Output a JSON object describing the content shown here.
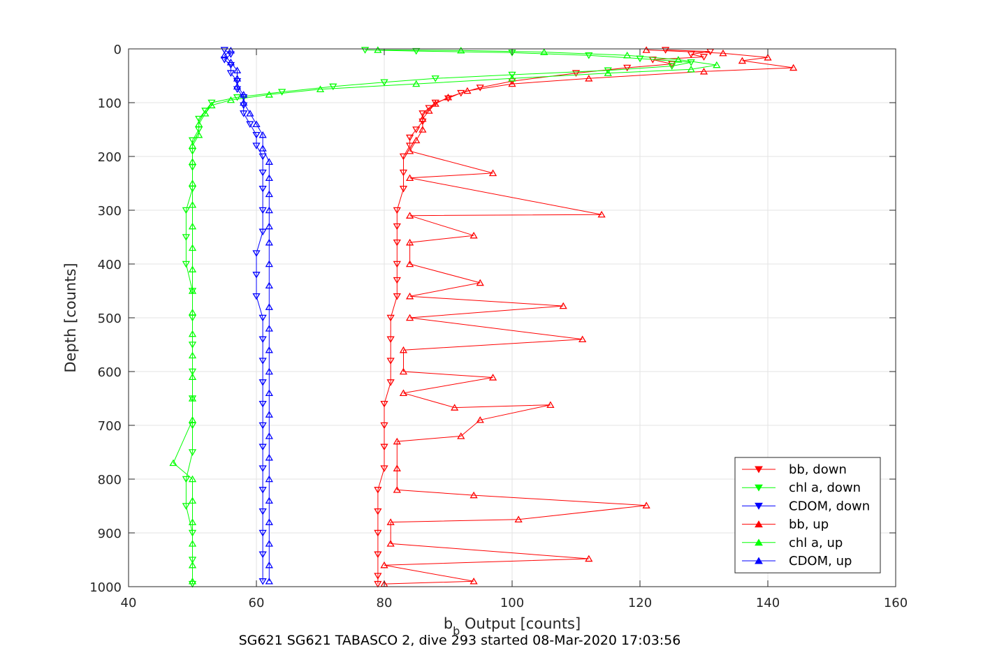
{
  "chart_data": {
    "type": "scatter",
    "title": "",
    "caption": "SG621 SG621 TABASCO 2, dive 293 started 08-Mar-2020 17:03:56",
    "xlabel": {
      "main": "b",
      "sub": "b",
      "rest": " Output [counts]"
    },
    "ylabel": "Depth [counts]",
    "xlim": [
      40,
      160
    ],
    "ylim": [
      0,
      1000
    ],
    "y_reversed": true,
    "grid": true,
    "legend_position": "bottom-right",
    "xticks": [
      40,
      60,
      80,
      100,
      120,
      140,
      160
    ],
    "yticks": [
      0,
      100,
      200,
      300,
      400,
      500,
      600,
      700,
      800,
      900,
      1000
    ],
    "series": [
      {
        "name": "bb, down",
        "color": "#ff0000",
        "marker": "triangle-down",
        "points": [
          [
            124,
            2
          ],
          [
            131,
            5
          ],
          [
            128,
            10
          ],
          [
            130,
            15
          ],
          [
            122,
            20
          ],
          [
            125,
            28
          ],
          [
            118,
            35
          ],
          [
            110,
            45
          ],
          [
            100,
            60
          ],
          [
            95,
            72
          ],
          [
            92,
            82
          ],
          [
            90,
            92
          ],
          [
            88,
            100
          ],
          [
            87,
            110
          ],
          [
            86,
            120
          ],
          [
            86,
            135
          ],
          [
            85,
            150
          ],
          [
            84,
            165
          ],
          [
            84,
            180
          ],
          [
            83,
            200
          ],
          [
            83,
            230
          ],
          [
            83,
            260
          ],
          [
            82,
            300
          ],
          [
            82,
            330
          ],
          [
            82,
            360
          ],
          [
            82,
            400
          ],
          [
            82,
            430
          ],
          [
            82,
            460
          ],
          [
            81,
            500
          ],
          [
            81,
            540
          ],
          [
            81,
            580
          ],
          [
            81,
            620
          ],
          [
            80,
            660
          ],
          [
            80,
            700
          ],
          [
            80,
            740
          ],
          [
            80,
            780
          ],
          [
            79,
            820
          ],
          [
            79,
            860
          ],
          [
            79,
            900
          ],
          [
            79,
            940
          ],
          [
            79,
            980
          ],
          [
            79,
            995
          ]
        ]
      },
      {
        "name": "chl a, down",
        "color": "#00ff00",
        "marker": "triangle-down",
        "points": [
          [
            77,
            2
          ],
          [
            85,
            4
          ],
          [
            100,
            7
          ],
          [
            112,
            12
          ],
          [
            120,
            18
          ],
          [
            128,
            25
          ],
          [
            125,
            32
          ],
          [
            115,
            40
          ],
          [
            100,
            48
          ],
          [
            88,
            55
          ],
          [
            80,
            62
          ],
          [
            72,
            70
          ],
          [
            64,
            80
          ],
          [
            57,
            90
          ],
          [
            53,
            100
          ],
          [
            52,
            115
          ],
          [
            51,
            130
          ],
          [
            51,
            150
          ],
          [
            50,
            170
          ],
          [
            50,
            190
          ],
          [
            50,
            220
          ],
          [
            50,
            260
          ],
          [
            49,
            300
          ],
          [
            49,
            350
          ],
          [
            49,
            400
          ],
          [
            50,
            450
          ],
          [
            50,
            500
          ],
          [
            50,
            550
          ],
          [
            50,
            600
          ],
          [
            50,
            650
          ],
          [
            50,
            700
          ],
          [
            50,
            750
          ],
          [
            49,
            800
          ],
          [
            49,
            850
          ],
          [
            50,
            900
          ],
          [
            50,
            950
          ],
          [
            50,
            995
          ]
        ]
      },
      {
        "name": "CDOM, down",
        "color": "#0000ff",
        "marker": "triangle-down",
        "points": [
          [
            55,
            2
          ],
          [
            56,
            10
          ],
          [
            55,
            20
          ],
          [
            56,
            30
          ],
          [
            56,
            45
          ],
          [
            57,
            60
          ],
          [
            57,
            75
          ],
          [
            58,
            90
          ],
          [
            58,
            105
          ],
          [
            58,
            120
          ],
          [
            59,
            140
          ],
          [
            60,
            160
          ],
          [
            60,
            180
          ],
          [
            61,
            200
          ],
          [
            61,
            230
          ],
          [
            61,
            260
          ],
          [
            61,
            300
          ],
          [
            61,
            340
          ],
          [
            60,
            380
          ],
          [
            60,
            420
          ],
          [
            60,
            460
          ],
          [
            61,
            500
          ],
          [
            61,
            540
          ],
          [
            61,
            580
          ],
          [
            61,
            620
          ],
          [
            61,
            660
          ],
          [
            61,
            700
          ],
          [
            61,
            740
          ],
          [
            61,
            780
          ],
          [
            61,
            820
          ],
          [
            61,
            860
          ],
          [
            61,
            900
          ],
          [
            61,
            940
          ],
          [
            61,
            990
          ]
        ]
      },
      {
        "name": "bb, up",
        "color": "#ff0000",
        "marker": "triangle-up",
        "points": [
          [
            121,
            2
          ],
          [
            133,
            8
          ],
          [
            140,
            16
          ],
          [
            136,
            22
          ],
          [
            144,
            35
          ],
          [
            130,
            42
          ],
          [
            112,
            55
          ],
          [
            100,
            65
          ],
          [
            93,
            78
          ],
          [
            90,
            90
          ],
          [
            88,
            102
          ],
          [
            87,
            115
          ],
          [
            86,
            130
          ],
          [
            86,
            150
          ],
          [
            85,
            170
          ],
          [
            84,
            190
          ],
          [
            97,
            231
          ],
          [
            84,
            240
          ],
          [
            114,
            308
          ],
          [
            84,
            310
          ],
          [
            94,
            347
          ],
          [
            84,
            360
          ],
          [
            84,
            400
          ],
          [
            95,
            435
          ],
          [
            84,
            460
          ],
          [
            108,
            478
          ],
          [
            84,
            500
          ],
          [
            111,
            540
          ],
          [
            83,
            560
          ],
          [
            83,
            600
          ],
          [
            97,
            611
          ],
          [
            83,
            640
          ],
          [
            91,
            667
          ],
          [
            106,
            662
          ],
          [
            95,
            690
          ],
          [
            92,
            720
          ],
          [
            82,
            730
          ],
          [
            82,
            780
          ],
          [
            82,
            820
          ],
          [
            94,
            830
          ],
          [
            121,
            849
          ],
          [
            101,
            875
          ],
          [
            81,
            880
          ],
          [
            81,
            920
          ],
          [
            112,
            948
          ],
          [
            80,
            960
          ],
          [
            94,
            990
          ],
          [
            80,
            995
          ]
        ]
      },
      {
        "name": "chl a, up",
        "color": "#00ff00",
        "marker": "triangle-up",
        "points": [
          [
            79,
            2
          ],
          [
            92,
            3
          ],
          [
            105,
            6
          ],
          [
            118,
            12
          ],
          [
            126,
            20
          ],
          [
            132,
            30
          ],
          [
            128,
            38
          ],
          [
            115,
            45
          ],
          [
            100,
            55
          ],
          [
            85,
            65
          ],
          [
            70,
            75
          ],
          [
            62,
            85
          ],
          [
            56,
            95
          ],
          [
            53,
            105
          ],
          [
            52,
            120
          ],
          [
            51,
            140
          ],
          [
            51,
            160
          ],
          [
            50,
            180
          ],
          [
            50,
            210
          ],
          [
            50,
            250
          ],
          [
            50,
            290
          ],
          [
            50,
            330
          ],
          [
            50,
            370
          ],
          [
            50,
            410
          ],
          [
            50,
            450
          ],
          [
            50,
            490
          ],
          [
            50,
            530
          ],
          [
            50,
            570
          ],
          [
            50,
            610
          ],
          [
            50,
            650
          ],
          [
            50,
            690
          ],
          [
            47,
            770
          ],
          [
            50,
            800
          ],
          [
            50,
            840
          ],
          [
            50,
            880
          ],
          [
            50,
            920
          ],
          [
            50,
            960
          ],
          [
            50,
            990
          ]
        ]
      },
      {
        "name": "CDOM, up",
        "color": "#0000ff",
        "marker": "triangle-up",
        "points": [
          [
            56,
            3
          ],
          [
            55,
            12
          ],
          [
            56,
            25
          ],
          [
            57,
            40
          ],
          [
            57,
            55
          ],
          [
            57,
            70
          ],
          [
            58,
            85
          ],
          [
            58,
            100
          ],
          [
            59,
            120
          ],
          [
            60,
            140
          ],
          [
            61,
            160
          ],
          [
            61,
            185
          ],
          [
            62,
            210
          ],
          [
            62,
            240
          ],
          [
            62,
            270
          ],
          [
            62,
            300
          ],
          [
            62,
            330
          ],
          [
            62,
            360
          ],
          [
            62,
            400
          ],
          [
            62,
            440
          ],
          [
            62,
            480
          ],
          [
            62,
            520
          ],
          [
            62,
            560
          ],
          [
            62,
            600
          ],
          [
            62,
            640
          ],
          [
            62,
            680
          ],
          [
            62,
            720
          ],
          [
            62,
            760
          ],
          [
            62,
            800
          ],
          [
            62,
            840
          ],
          [
            62,
            880
          ],
          [
            62,
            920
          ],
          [
            62,
            960
          ],
          [
            62,
            990
          ]
        ]
      }
    ]
  }
}
